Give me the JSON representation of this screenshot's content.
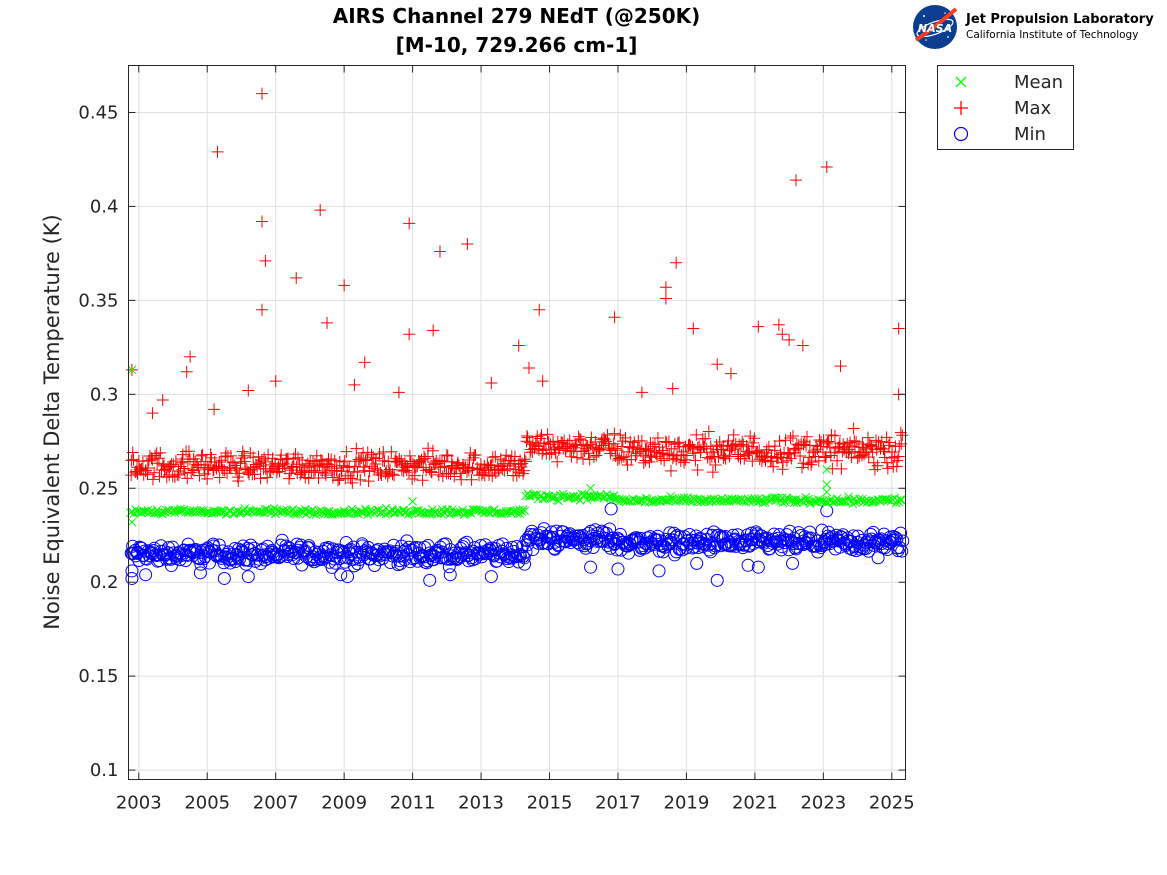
{
  "chart_data": {
    "type": "scatter",
    "title": "AIRS Channel 279 NEdT (@250K)",
    "subtitle": "[M-10, 729.266 cm-1]",
    "xlabel": "",
    "ylabel": "Noise Equivalent Delta Temperature (K)",
    "xlim": [
      2002.7,
      2025.4
    ],
    "ylim": [
      0.095,
      0.475
    ],
    "x_ticks": [
      2003,
      2005,
      2007,
      2009,
      2011,
      2013,
      2015,
      2017,
      2019,
      2021,
      2023,
      2025
    ],
    "x_tick_labels": [
      "2003",
      "2005",
      "2007",
      "2009",
      "2011",
      "2013",
      "2015",
      "2017",
      "2019",
      "2021",
      "2023",
      "2025"
    ],
    "y_ticks": [
      0.1,
      0.15,
      0.2,
      0.25,
      0.3,
      0.35,
      0.4,
      0.45
    ],
    "y_tick_labels": [
      "0.1",
      "0.15",
      "0.2",
      "0.25",
      "0.3",
      "0.35",
      "0.4",
      "0.45"
    ],
    "grid": true,
    "legend_position": "outside-top-right",
    "series": [
      {
        "name": "Mean",
        "marker": "x",
        "color": "#00ff00",
        "trend": [
          {
            "x_start": 2002.75,
            "x_end": 2014.3,
            "value": 0.2375,
            "spread": 0.0015
          },
          {
            "x_start": 2014.3,
            "x_end": 2016.9,
            "value": 0.2455,
            "spread": 0.0015
          },
          {
            "x_start": 2016.9,
            "x_end": 2025.3,
            "value": 0.2435,
            "spread": 0.0015
          }
        ],
        "outliers": [
          [
            2002.8,
            0.313
          ],
          [
            2002.8,
            0.232
          ],
          [
            2011.0,
            0.243
          ],
          [
            2016.2,
            0.25
          ],
          [
            2023.1,
            0.26
          ],
          [
            2023.1,
            0.252
          ],
          [
            2023.1,
            0.248
          ]
        ]
      },
      {
        "name": "Max",
        "marker": "+",
        "color": "#ff0000",
        "trend": [
          {
            "x_start": 2002.75,
            "x_end": 2014.3,
            "value": 0.262,
            "spread": 0.007
          },
          {
            "x_start": 2014.3,
            "x_end": 2016.9,
            "value": 0.272,
            "spread": 0.007
          },
          {
            "x_start": 2016.9,
            "x_end": 2025.3,
            "value": 0.27,
            "spread": 0.008
          }
        ],
        "outliers": [
          [
            2006.6,
            0.46
          ],
          [
            2005.3,
            0.429
          ],
          [
            2022.2,
            0.414
          ],
          [
            2023.1,
            0.421
          ],
          [
            2006.6,
            0.392
          ],
          [
            2008.3,
            0.398
          ],
          [
            2010.9,
            0.391
          ],
          [
            2011.8,
            0.376
          ],
          [
            2012.6,
            0.38
          ],
          [
            2006.7,
            0.371
          ],
          [
            2018.7,
            0.37
          ],
          [
            2007.6,
            0.362
          ],
          [
            2009.0,
            0.358
          ],
          [
            2018.4,
            0.357
          ],
          [
            2018.4,
            0.351
          ],
          [
            2006.6,
            0.345
          ],
          [
            2014.7,
            0.345
          ],
          [
            2016.9,
            0.341
          ],
          [
            2008.5,
            0.338
          ],
          [
            2019.2,
            0.335
          ],
          [
            2011.6,
            0.334
          ],
          [
            2010.9,
            0.332
          ],
          [
            2021.1,
            0.336
          ],
          [
            2021.7,
            0.337
          ],
          [
            2021.8,
            0.332
          ],
          [
            2022.0,
            0.329
          ],
          [
            2022.4,
            0.326
          ],
          [
            2025.2,
            0.335
          ],
          [
            2014.1,
            0.326
          ],
          [
            2004.5,
            0.32
          ],
          [
            2004.4,
            0.312
          ],
          [
            2009.6,
            0.317
          ],
          [
            2014.4,
            0.314
          ],
          [
            2019.9,
            0.316
          ],
          [
            2023.5,
            0.315
          ],
          [
            2002.8,
            0.313
          ],
          [
            2007.0,
            0.307
          ],
          [
            2013.3,
            0.306
          ],
          [
            2014.8,
            0.307
          ],
          [
            2009.3,
            0.305
          ],
          [
            2006.2,
            0.302
          ],
          [
            2010.6,
            0.301
          ],
          [
            2020.3,
            0.311
          ],
          [
            2025.2,
            0.3
          ],
          [
            2003.7,
            0.297
          ],
          [
            2005.2,
            0.292
          ],
          [
            2003.4,
            0.29
          ],
          [
            2018.6,
            0.303
          ],
          [
            2017.7,
            0.301
          ]
        ]
      },
      {
        "name": "Min",
        "marker": "o",
        "color": "#0000ff",
        "trend": [
          {
            "x_start": 2002.75,
            "x_end": 2014.3,
            "value": 0.215,
            "spread": 0.005
          },
          {
            "x_start": 2014.3,
            "x_end": 2016.9,
            "value": 0.223,
            "spread": 0.005
          },
          {
            "x_start": 2016.9,
            "x_end": 2025.3,
            "value": 0.221,
            "spread": 0.005
          }
        ],
        "outliers": [
          [
            2002.8,
            0.202
          ],
          [
            2002.8,
            0.206
          ],
          [
            2003.2,
            0.204
          ],
          [
            2004.8,
            0.205
          ],
          [
            2005.5,
            0.202
          ],
          [
            2006.2,
            0.203
          ],
          [
            2008.9,
            0.204
          ],
          [
            2009.1,
            0.203
          ],
          [
            2011.5,
            0.201
          ],
          [
            2012.1,
            0.204
          ],
          [
            2013.3,
            0.203
          ],
          [
            2016.8,
            0.239
          ],
          [
            2016.2,
            0.208
          ],
          [
            2017.0,
            0.207
          ],
          [
            2018.2,
            0.206
          ],
          [
            2019.3,
            0.21
          ],
          [
            2019.9,
            0.201
          ],
          [
            2020.8,
            0.209
          ],
          [
            2021.1,
            0.208
          ],
          [
            2023.1,
            0.238
          ],
          [
            2022.1,
            0.21
          ],
          [
            2024.6,
            0.213
          ]
        ]
      }
    ]
  },
  "legend": {
    "entries": [
      {
        "label": "Mean",
        "marker": "x",
        "color": "#00ff00"
      },
      {
        "label": "Max",
        "marker": "+",
        "color": "#ff0000"
      },
      {
        "label": "Min",
        "marker": "o",
        "color": "#0000ff"
      }
    ]
  },
  "logo": {
    "emblem": "NASA",
    "name": "Jet Propulsion Laboratory",
    "subtitle": "California Institute of Technology",
    "emblem_color": "#0b3d91",
    "vector_color": "#fc3d21"
  }
}
